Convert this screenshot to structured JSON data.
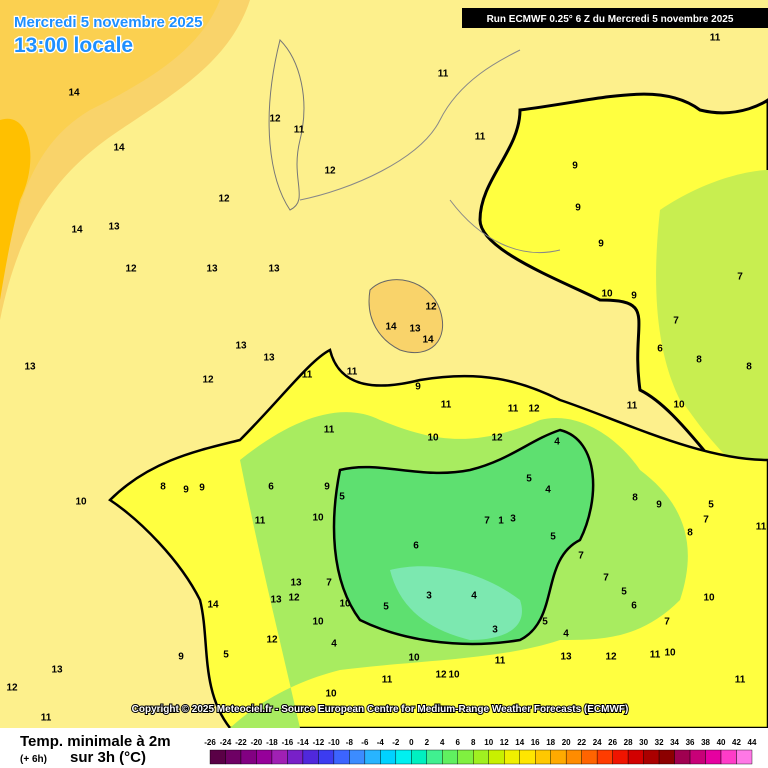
{
  "header": {
    "date": "Mercredi 5 novembre 2025",
    "time": "13:00 locale",
    "run": "Run ECMWF 0.25° 6 Z du Mercredi 5 novembre 2025"
  },
  "copyright": "Copyright © 2025 Meteociel.fr - Source European Centre for Medium-Range Weather Forecasts (ECMWF)",
  "legend": {
    "title": "Temp. minimale à 2m",
    "lead": "(+ 6h)",
    "subtitle": "sur 3h (°C)",
    "ticks": [
      -26,
      -24,
      -22,
      -20,
      -18,
      -16,
      -14,
      -12,
      -10,
      -8,
      -6,
      -4,
      -2,
      0,
      2,
      4,
      6,
      8,
      10,
      12,
      14,
      16,
      18,
      20,
      22,
      24,
      26,
      28,
      30,
      32,
      34,
      36,
      38,
      40,
      42,
      44
    ],
    "colors": [
      "#5a0046",
      "#6e0064",
      "#820082",
      "#96009a",
      "#a020b4",
      "#7820c8",
      "#5028dc",
      "#3c3cf0",
      "#3c64ff",
      "#3c8cff",
      "#28b4ff",
      "#00d2ff",
      "#00f0f0",
      "#00f0c0",
      "#40f090",
      "#60f060",
      "#80f040",
      "#a0f020",
      "#c8f000",
      "#f0f000",
      "#ffe600",
      "#ffc800",
      "#ffaa00",
      "#ff8c00",
      "#ff6400",
      "#ff3c00",
      "#f01400",
      "#d20000",
      "#aa0000",
      "#8c0000",
      "#a00050",
      "#c80078",
      "#e600a0",
      "#ff3cc8",
      "#ff78e6"
    ]
  },
  "contour_labels": [
    14,
    14,
    14,
    12,
    11,
    12,
    12,
    13,
    12,
    13,
    13,
    11,
    11,
    11,
    9,
    9,
    9,
    10,
    9,
    7,
    7,
    6,
    8,
    8,
    12,
    14,
    13,
    14,
    13,
    13,
    12,
    13,
    11,
    11,
    9,
    11,
    11,
    12,
    11,
    10,
    11,
    10,
    12,
    4,
    8,
    9,
    9,
    6,
    9,
    5,
    10,
    11,
    10,
    4,
    5,
    8,
    9,
    5,
    7,
    8,
    11,
    3,
    7,
    1,
    6,
    5,
    7,
    3,
    4,
    5,
    3,
    5,
    4,
    7,
    5,
    6,
    10,
    7,
    13,
    7,
    13,
    12,
    10,
    10,
    4,
    14,
    5,
    9,
    12,
    13,
    12,
    11,
    10,
    11,
    13,
    12,
    11,
    10,
    10,
    11,
    12,
    10,
    11,
    10
  ]
}
